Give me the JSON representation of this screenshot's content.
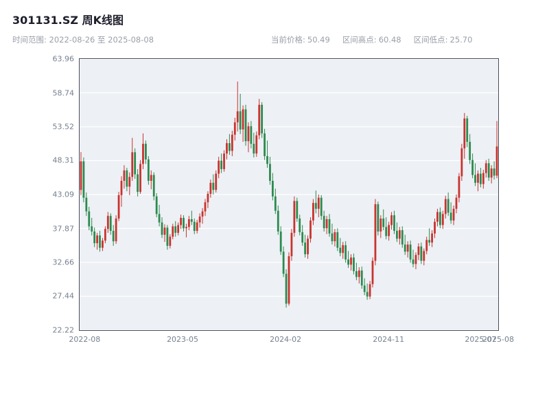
{
  "header": {
    "title": "301131.SZ 周K线图",
    "time_range": "时间范围: 2022-08-26 至 2025-08-08",
    "stats": [
      {
        "label": "当前价格:",
        "value": "50.49"
      },
      {
        "label": "区间高点:",
        "value": "60.48"
      },
      {
        "label": "区间低点:",
        "value": "25.70"
      }
    ]
  },
  "chart_data": {
    "type": "candlestick",
    "title": "301131.SZ 周K线图",
    "period": "weekly",
    "x_range": [
      "2022-08-26",
      "2025-08-08"
    ],
    "current_price": 50.49,
    "range_high": 60.48,
    "range_low": 25.7,
    "ylim": [
      22.22,
      63.96
    ],
    "y_ticks": [
      "63.96",
      "58.74",
      "53.52",
      "48.31",
      "43.09",
      "37.87",
      "32.66",
      "27.44",
      "22.22"
    ],
    "x_ticks": [
      {
        "label": "2022-08",
        "pos": 0.012
      },
      {
        "label": "2023-05",
        "pos": 0.246
      },
      {
        "label": "2024-02",
        "pos": 0.492
      },
      {
        "label": "2024-11",
        "pos": 0.738
      },
      {
        "label": "2025-07",
        "pos": 0.958
      },
      {
        "label": "2025-08",
        "pos": 1.0
      }
    ],
    "colors": {
      "up": "#c8332e",
      "down": "#2c8a4e",
      "plot_bg": "#edf0f5",
      "grid": "#ffffff"
    },
    "candles": [
      [
        43.8,
        49.62,
        43.0,
        48.2
      ],
      [
        48.2,
        48.8,
        41.9,
        42.6
      ],
      [
        42.6,
        43.4,
        39.8,
        40.5
      ],
      [
        40.5,
        41.2,
        37.6,
        38.2
      ],
      [
        38.2,
        39.5,
        36.8,
        37.4
      ],
      [
        37.4,
        38.0,
        35.0,
        35.6
      ],
      [
        35.6,
        37.2,
        34.6,
        36.8
      ],
      [
        36.8,
        37.5,
        34.3,
        34.9
      ],
      [
        34.9,
        36.4,
        34.4,
        36.0
      ],
      [
        36.0,
        38.2,
        35.6,
        37.8
      ],
      [
        37.8,
        40.4,
        37.2,
        39.8
      ],
      [
        39.8,
        40.2,
        36.9,
        37.5
      ],
      [
        37.5,
        38.4,
        35.2,
        35.9
      ],
      [
        35.9,
        39.9,
        35.5,
        39.4
      ],
      [
        39.4,
        43.5,
        39.0,
        43.0
      ],
      [
        43.0,
        45.9,
        41.2,
        45.2
      ],
      [
        45.2,
        47.6,
        44.0,
        46.8
      ],
      [
        46.8,
        47.2,
        43.6,
        44.3
      ],
      [
        44.3,
        46.5,
        43.0,
        45.8
      ],
      [
        45.8,
        51.8,
        45.2,
        49.6
      ],
      [
        49.6,
        50.2,
        45.5,
        46.2
      ],
      [
        46.2,
        47.0,
        42.8,
        43.5
      ],
      [
        43.5,
        48.4,
        43.2,
        47.8
      ],
      [
        47.8,
        52.5,
        47.0,
        50.9
      ],
      [
        50.9,
        51.4,
        47.8,
        48.5
      ],
      [
        48.5,
        49.0,
        44.6,
        45.2
      ],
      [
        45.2,
        46.8,
        43.9,
        46.1
      ],
      [
        46.1,
        46.5,
        42.2,
        42.8
      ],
      [
        42.8,
        43.3,
        39.6,
        40.1
      ],
      [
        40.1,
        41.5,
        38.2,
        38.8
      ],
      [
        38.8,
        39.6,
        36.4,
        36.9
      ],
      [
        36.9,
        38.5,
        35.8,
        38.0
      ],
      [
        38.0,
        38.4,
        34.6,
        35.2
      ],
      [
        35.2,
        37.0,
        34.8,
        36.6
      ],
      [
        36.6,
        38.6,
        36.2,
        38.2
      ],
      [
        38.2,
        39.0,
        36.6,
        37.2
      ],
      [
        37.2,
        38.8,
        36.8,
        38.4
      ],
      [
        38.4,
        40.0,
        37.8,
        39.5
      ],
      [
        39.5,
        39.9,
        37.4,
        37.9
      ],
      [
        37.9,
        38.6,
        36.5,
        38.1
      ],
      [
        38.1,
        39.8,
        37.6,
        39.3
      ],
      [
        39.3,
        40.6,
        38.4,
        38.9
      ],
      [
        38.9,
        39.4,
        37.0,
        37.5
      ],
      [
        37.5,
        39.2,
        37.1,
        38.8
      ],
      [
        38.8,
        40.2,
        38.0,
        39.7
      ],
      [
        39.7,
        41.0,
        38.6,
        40.5
      ],
      [
        40.5,
        42.4,
        39.8,
        41.9
      ],
      [
        41.9,
        43.6,
        41.0,
        43.2
      ],
      [
        43.2,
        45.4,
        42.6,
        44.9
      ],
      [
        44.9,
        46.2,
        43.1,
        43.8
      ],
      [
        43.8,
        46.8,
        43.4,
        46.3
      ],
      [
        46.3,
        48.9,
        45.6,
        48.3
      ],
      [
        48.3,
        49.4,
        46.4,
        47.0
      ],
      [
        47.0,
        49.9,
        46.6,
        49.4
      ],
      [
        49.4,
        51.6,
        48.5,
        51.0
      ],
      [
        51.0,
        52.4,
        49.2,
        49.8
      ],
      [
        49.8,
        52.9,
        49.0,
        52.3
      ],
      [
        52.3,
        54.9,
        51.4,
        54.2
      ],
      [
        54.2,
        60.48,
        52.8,
        55.9
      ],
      [
        55.9,
        58.6,
        52.4,
        53.1
      ],
      [
        53.1,
        56.8,
        51.2,
        56.2
      ],
      [
        56.2,
        56.9,
        50.6,
        51.3
      ],
      [
        51.3,
        54.2,
        49.6,
        53.6
      ],
      [
        53.6,
        54.4,
        50.2,
        50.9
      ],
      [
        50.9,
        52.6,
        48.8,
        49.4
      ],
      [
        49.4,
        52.8,
        48.9,
        52.2
      ],
      [
        52.2,
        57.8,
        51.6,
        56.9
      ],
      [
        56.9,
        57.3,
        51.8,
        52.5
      ],
      [
        52.5,
        53.2,
        48.4,
        49.0
      ],
      [
        49.0,
        51.4,
        47.2,
        47.8
      ],
      [
        47.8,
        48.9,
        44.6,
        45.2
      ],
      [
        45.2,
        46.4,
        42.2,
        42.8
      ],
      [
        42.8,
        44.0,
        40.1,
        40.6
      ],
      [
        40.6,
        41.4,
        36.9,
        37.4
      ],
      [
        37.4,
        38.2,
        33.8,
        34.3
      ],
      [
        34.3,
        35.1,
        30.4,
        30.9
      ],
      [
        30.9,
        31.6,
        25.7,
        26.3
      ],
      [
        26.3,
        34.2,
        26.0,
        33.6
      ],
      [
        33.6,
        37.8,
        32.9,
        37.2
      ],
      [
        37.2,
        42.8,
        36.6,
        42.1
      ],
      [
        42.1,
        42.6,
        38.9,
        39.4
      ],
      [
        39.4,
        40.0,
        36.8,
        37.3
      ],
      [
        37.3,
        38.4,
        35.2,
        35.7
      ],
      [
        35.7,
        36.9,
        33.4,
        33.9
      ],
      [
        33.9,
        36.8,
        33.2,
        36.3
      ],
      [
        36.3,
        39.6,
        35.7,
        39.1
      ],
      [
        39.1,
        42.4,
        38.4,
        41.8
      ],
      [
        41.8,
        43.7,
        40.2,
        40.9
      ],
      [
        40.9,
        43.1,
        39.6,
        42.6
      ],
      [
        42.6,
        43.0,
        39.2,
        39.8
      ],
      [
        39.8,
        40.6,
        37.4,
        37.9
      ],
      [
        37.9,
        39.8,
        37.0,
        39.3
      ],
      [
        39.3,
        40.1,
        36.6,
        37.1
      ],
      [
        37.1,
        38.6,
        35.4,
        35.9
      ],
      [
        35.9,
        37.8,
        35.1,
        37.3
      ],
      [
        37.3,
        37.9,
        34.4,
        34.9
      ],
      [
        34.9,
        36.4,
        33.6,
        34.1
      ],
      [
        34.1,
        35.8,
        33.2,
        35.3
      ],
      [
        35.3,
        35.9,
        32.6,
        33.1
      ],
      [
        33.1,
        34.4,
        31.8,
        32.3
      ],
      [
        32.3,
        33.9,
        31.4,
        33.4
      ],
      [
        33.4,
        34.0,
        30.8,
        31.3
      ],
      [
        31.3,
        32.6,
        29.9,
        30.4
      ],
      [
        30.4,
        31.9,
        29.4,
        31.4
      ],
      [
        31.4,
        32.0,
        28.6,
        29.1
      ],
      [
        29.1,
        30.2,
        27.6,
        28.1
      ],
      [
        28.1,
        29.4,
        26.9,
        27.4
      ],
      [
        27.4,
        29.8,
        27.0,
        29.3
      ],
      [
        29.3,
        33.4,
        28.8,
        32.9
      ],
      [
        32.9,
        42.4,
        32.2,
        41.6
      ],
      [
        41.6,
        42.0,
        36.8,
        37.4
      ],
      [
        37.4,
        39.9,
        36.4,
        39.4
      ],
      [
        39.4,
        40.8,
        37.6,
        38.1
      ],
      [
        38.1,
        39.6,
        36.2,
        36.7
      ],
      [
        36.7,
        38.9,
        36.0,
        38.4
      ],
      [
        38.4,
        40.4,
        37.7,
        39.9
      ],
      [
        39.9,
        40.6,
        37.0,
        37.5
      ],
      [
        37.5,
        38.8,
        35.8,
        36.3
      ],
      [
        36.3,
        38.1,
        35.4,
        37.6
      ],
      [
        37.6,
        38.2,
        34.9,
        35.4
      ],
      [
        35.4,
        36.9,
        33.8,
        34.3
      ],
      [
        34.3,
        35.9,
        33.4,
        35.4
      ],
      [
        35.4,
        36.0,
        32.6,
        33.1
      ],
      [
        33.1,
        34.6,
        31.9,
        32.4
      ],
      [
        32.4,
        34.2,
        31.6,
        33.8
      ],
      [
        33.8,
        35.6,
        33.0,
        35.1
      ],
      [
        35.1,
        35.7,
        32.4,
        32.9
      ],
      [
        32.9,
        34.8,
        32.2,
        34.4
      ],
      [
        34.4,
        36.6,
        33.9,
        36.1
      ],
      [
        36.1,
        37.9,
        35.2,
        35.7
      ],
      [
        35.7,
        37.6,
        35.0,
        37.1
      ],
      [
        37.1,
        39.4,
        36.4,
        38.9
      ],
      [
        38.9,
        40.9,
        38.2,
        40.4
      ],
      [
        40.4,
        41.1,
        37.9,
        38.4
      ],
      [
        38.4,
        40.6,
        37.8,
        40.1
      ],
      [
        40.1,
        42.9,
        39.4,
        42.4
      ],
      [
        42.4,
        43.4,
        39.8,
        40.3
      ],
      [
        40.3,
        41.9,
        38.6,
        39.1
      ],
      [
        39.1,
        41.4,
        38.4,
        40.9
      ],
      [
        40.9,
        43.1,
        40.2,
        42.6
      ],
      [
        42.6,
        46.4,
        41.9,
        45.9
      ],
      [
        45.9,
        50.9,
        45.2,
        50.2
      ],
      [
        50.2,
        55.64,
        48.6,
        54.8
      ],
      [
        54.8,
        55.2,
        50.4,
        51.2
      ],
      [
        51.2,
        52.4,
        47.8,
        48.4
      ],
      [
        48.4,
        49.4,
        45.6,
        46.1
      ],
      [
        46.1,
        47.9,
        44.4,
        44.9
      ],
      [
        44.9,
        46.8,
        43.6,
        46.3
      ],
      [
        46.3,
        47.2,
        44.2,
        44.7
      ],
      [
        44.7,
        46.9,
        44.0,
        46.4
      ],
      [
        46.4,
        48.4,
        45.7,
        47.9
      ],
      [
        47.9,
        48.6,
        45.2,
        45.7
      ],
      [
        45.7,
        47.6,
        44.8,
        47.1
      ],
      [
        47.1,
        48.2,
        45.4,
        46.0
      ],
      [
        46.0,
        54.4,
        45.6,
        50.49
      ]
    ]
  }
}
